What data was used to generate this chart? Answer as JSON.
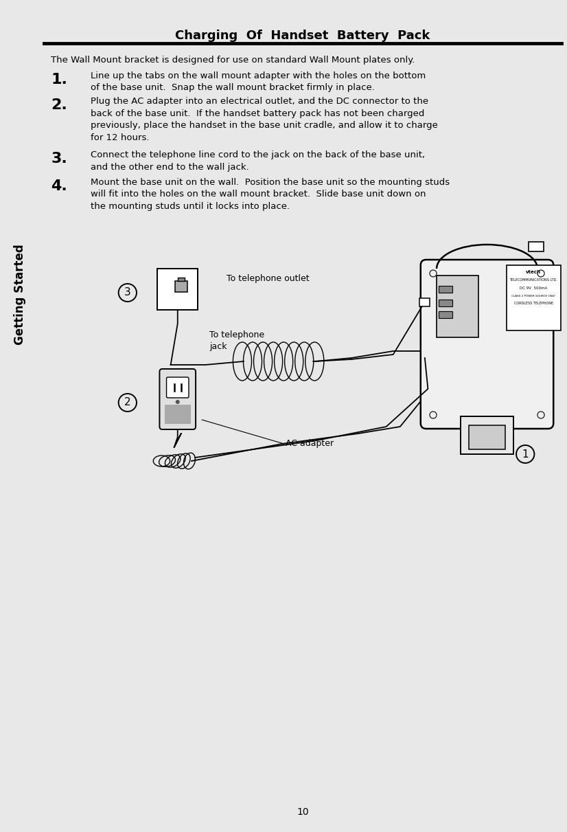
{
  "title": "Charging  Of  Handset  Battery  Pack",
  "sidebar_text": "Getting Started",
  "sidebar_bg": "#808080",
  "sidebar_bottom_bg": "#d8d8d8",
  "page_bg": "#e8e8e8",
  "content_bg": "#ffffff",
  "page_number": "10",
  "intro_text": "The Wall Mount bracket is designed for use on standard Wall Mount plates only.",
  "step1_num": "1.",
  "step1_text": "Line up the tabs on the wall mount adapter with the holes on the bottom\nof the base unit.  Snap the wall mount bracket firmly in place.",
  "step2_num": "2.",
  "step2_text": "Plug the AC adapter into an electrical outlet, and the DC connector to the\nback of the base unit.  If the handset battery pack has not been charged\npreviously, place the handset in the base unit cradle, and allow it to charge\nfor 12 hours.",
  "step3_num": "3.",
  "step3_text": "Connect the telephone line cord to the jack on the back of the base unit,\nand the other end to the wall jack.",
  "step4_num": "4.",
  "step4_text": "Mount the base unit on the wall.  Position the base unit so the mounting studs\nwill fit into the holes on the wall mount bracket.  Slide base unit down on\nthe mounting studs until it locks into place.",
  "label_outlet": "To telephone outlet",
  "label_jack": "To telephone\njack",
  "label_ac": "AC adapter",
  "text_color": "#000000",
  "title_fontsize": 13,
  "body_fontsize": 9.5,
  "step_num_fontsize": 16
}
